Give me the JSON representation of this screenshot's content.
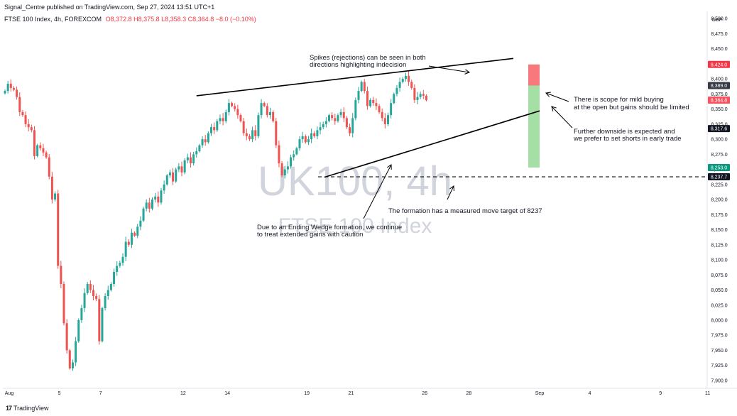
{
  "header": {
    "published": "Signal_Centre published on TradingView.com, Sep 27, 2024 13:51 UTC+1",
    "symbol": "FTSE 100 Index, 4h, FOREXCOM",
    "ohlc": "O8,372.8 H8,375.8 L8,358.3 C8,364.8 −8.0 (−0.10%)"
  },
  "currency": "GBP",
  "footer": {
    "brand": "TradingView",
    "logo": "17"
  },
  "watermark": {
    "main": "UK100, 4h",
    "sub": "FTSE 100 Index"
  },
  "colors": {
    "up": "#26a69a",
    "down": "#ef5350",
    "red_zone": "#f7797c",
    "green_zone": "#a5dfa5",
    "annotation": "#000000"
  },
  "price_tags": [
    {
      "label": "8,424.0",
      "value": 8424.0,
      "color": "#f23645"
    },
    {
      "label": "8,389.0",
      "value": 8389.0,
      "color": "#363a45"
    },
    {
      "label": "8,364.8",
      "value": 8364.8,
      "color": "#f7525f"
    },
    {
      "label": "8,317.6",
      "value": 8317.6,
      "color": "#131722"
    },
    {
      "label": "8,253.0",
      "value": 8253.0,
      "color": "#089981"
    },
    {
      "label": "8,237.7",
      "value": 8237.7,
      "color": "#131722"
    }
  ],
  "annotations": {
    "spikes": [
      "Spikes (rejections) can be seen in both",
      "directions highlighting indecision"
    ],
    "buying": [
      "There is scope for mild buying",
      "at the open but gains should be limited"
    ],
    "downside": [
      "Further downside is expected and",
      "we prefer to set shorts in early trade"
    ],
    "wedge": [
      "Due to an Ending Wedge formation, we continue",
      "to treat extended gains with caution"
    ],
    "target": [
      "The formation has a measured move target of 8237"
    ]
  },
  "chart_data": {
    "type": "candlestick",
    "title": "FTSE 100 Index, 4h, FOREXCOM",
    "xlabel": "",
    "ylabel": "GBP",
    "ylim": [
      7887,
      8512
    ],
    "y_ticks": [
      7900,
      7925,
      7950,
      7975,
      8000,
      8025,
      8050,
      8075,
      8100,
      8125,
      8150,
      8175,
      8200,
      8225,
      8250,
      8275,
      8300,
      8325,
      8350,
      8375,
      8400,
      8425,
      8450,
      8475,
      8500
    ],
    "x_ticks": [
      {
        "label": "Aug",
        "index": 0
      },
      {
        "label": "5",
        "index": 17
      },
      {
        "label": "7",
        "index": 31
      },
      {
        "label": "12",
        "index": 59
      },
      {
        "label": "14",
        "index": 74
      },
      {
        "label": "19",
        "index": 101
      },
      {
        "label": "21",
        "index": 116
      },
      {
        "label": "26",
        "index": 141
      },
      {
        "label": "28",
        "index": 156
      },
      {
        "label": "Sep",
        "index": 180
      },
      {
        "label": "4",
        "index": 197
      },
      {
        "label": "9",
        "index": 221
      },
      {
        "label": "11",
        "index": 237
      }
    ],
    "closes": [
      8380,
      8392,
      8385,
      8382,
      8370,
      8345,
      8340,
      8325,
      8320,
      8315,
      8272,
      8290,
      8285,
      8278,
      8270,
      8238,
      8200,
      8210,
      8090,
      8060,
      7995,
      7950,
      7920,
      7930,
      7965,
      8000,
      8020,
      8045,
      8060,
      8050,
      8040,
      8035,
      7965,
      8020,
      8040,
      8050,
      8060,
      8080,
      8090,
      8095,
      8105,
      8130,
      8125,
      8145,
      8140,
      8155,
      8165,
      8185,
      8195,
      8185,
      8200,
      8205,
      8195,
      8215,
      8225,
      8240,
      8245,
      8230,
      8250,
      8255,
      8245,
      8265,
      8270,
      8260,
      8275,
      8280,
      8290,
      8300,
      8295,
      8310,
      8320,
      8315,
      8330,
      8335,
      8330,
      8345,
      8360,
      8355,
      8350,
      8340,
      8330,
      8310,
      8305,
      8300,
      8315,
      8305,
      8340,
      8360,
      8355,
      8340,
      8345,
      8330,
      8290,
      8260,
      8240,
      8250,
      8255,
      8270,
      8275,
      8285,
      8300,
      8305,
      8295,
      8300,
      8310,
      8305,
      8315,
      8320,
      8325,
      8330,
      8340,
      8335,
      8330,
      8340,
      8345,
      8335,
      8320,
      8310,
      8335,
      8365,
      8380,
      8395,
      8380,
      8355,
      8365,
      8360,
      8355,
      8345,
      8335,
      8325,
      8340,
      8360,
      8375,
      8385,
      8395,
      8400,
      8405,
      8395,
      8385,
      8365,
      8370,
      8375,
      8372,
      8364.8
    ]
  },
  "chart_overlays": {
    "wedge_upper": [
      [
        65,
        8372
      ],
      [
        137,
        8424
      ]
    ],
    "wedge_lower": [
      [
        86,
        8237
      ],
      [
        146,
        8347
      ]
    ],
    "target_line": 8237.7,
    "red_box": [
      8389,
      8424
    ],
    "green_box": [
      8253,
      8389
    ]
  }
}
